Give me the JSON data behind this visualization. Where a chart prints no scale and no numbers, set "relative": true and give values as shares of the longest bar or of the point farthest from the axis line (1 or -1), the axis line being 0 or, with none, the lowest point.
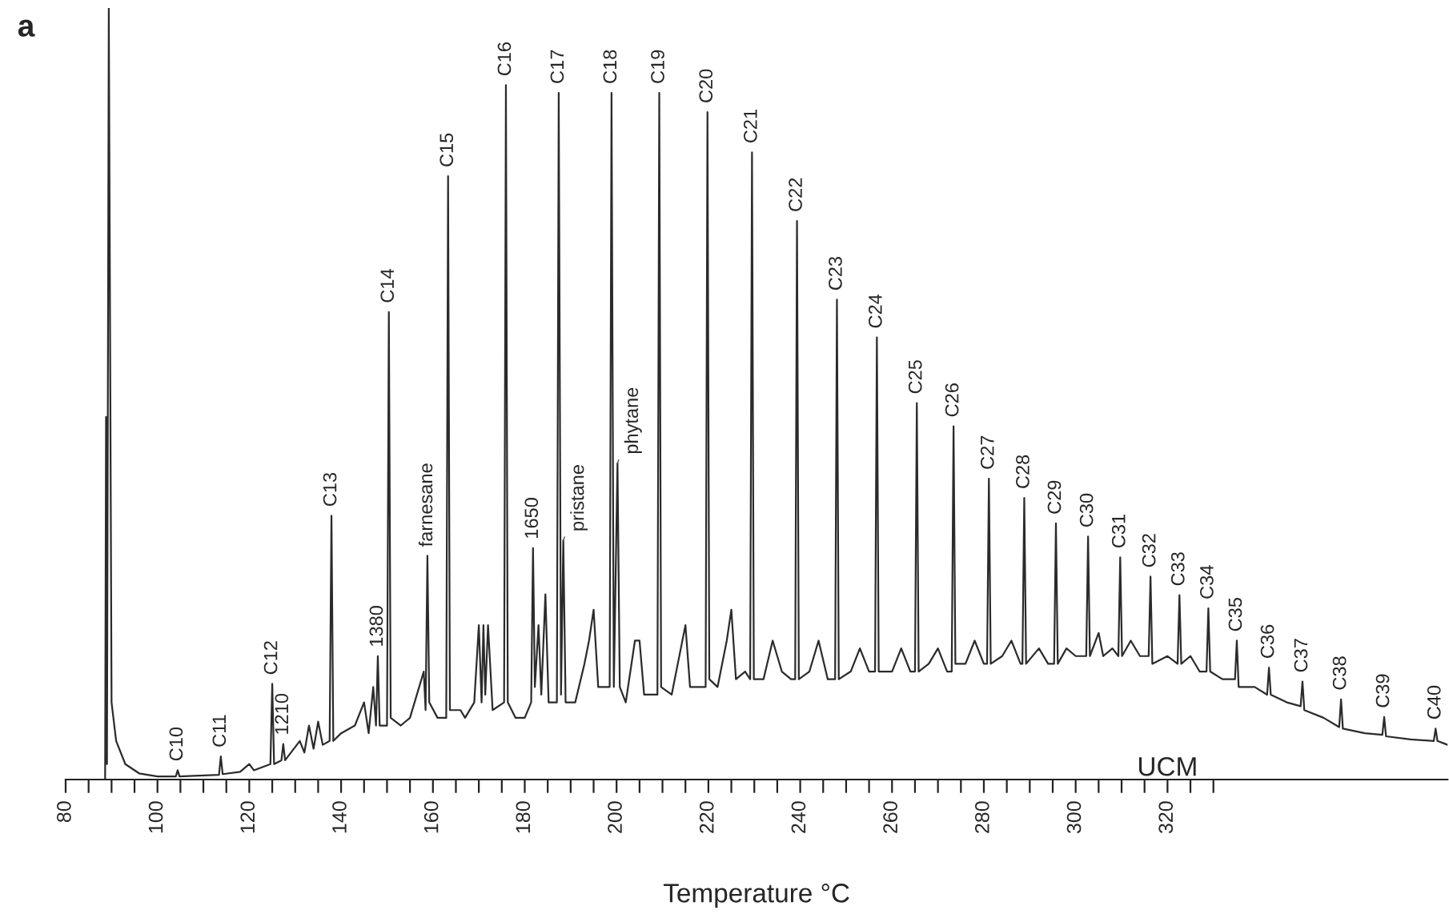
{
  "chart_data": {
    "type": "line",
    "relative": true,
    "xlabel": "Temperature °C",
    "xlim": [
      80,
      381
    ],
    "xticks": [
      80,
      {
        "value": 85,
        "label": null
      },
      {
        "value": 90,
        "label": null
      },
      {
        "value": 95,
        "label": null
      },
      100,
      {
        "value": 105,
        "label": null
      },
      {
        "value": 110,
        "label": null
      },
      {
        "value": 115,
        "label": null
      },
      120,
      {
        "value": 125,
        "label": null
      },
      {
        "value": 130,
        "label": null
      },
      {
        "value": 135,
        "label": null
      },
      140,
      {
        "value": 145,
        "label": null
      },
      {
        "value": 150,
        "label": null
      },
      {
        "value": 155,
        "label": null
      },
      160,
      {
        "value": 165,
        "label": null
      },
      {
        "value": 170,
        "label": null
      },
      {
        "value": 175,
        "label": null
      },
      180,
      {
        "value": 185,
        "label": null
      },
      {
        "value": 190,
        "label": null
      },
      {
        "value": 195,
        "label": null
      },
      200,
      {
        "value": 205,
        "label": null
      },
      {
        "value": 210,
        "label": null
      },
      {
        "value": 215,
        "label": null
      },
      220,
      {
        "value": 225,
        "label": null
      },
      {
        "value": 230,
        "label": null
      },
      {
        "value": 235,
        "label": null
      },
      240,
      {
        "value": 245,
        "label": null
      },
      {
        "value": 250,
        "label": null
      },
      {
        "value": 255,
        "label": null
      },
      260,
      {
        "value": 265,
        "label": null
      },
      {
        "value": 270,
        "label": null
      },
      {
        "value": 275,
        "label": null
      },
      280,
      {
        "value": 285,
        "label": null
      },
      {
        "value": 290,
        "label": null
      },
      {
        "value": 295,
        "label": null
      },
      300,
      {
        "value": 305,
        "label": null
      },
      {
        "value": 310,
        "label": null
      },
      {
        "value": 315,
        "label": null
      },
      320,
      {
        "value": 325,
        "label": null
      },
      {
        "value": 330,
        "label": null
      }
    ],
    "grid": false,
    "legend": false,
    "marker": "none",
    "line_style": "solid",
    "series": [
      {
        "color": "#2b2b2b",
        "x": [
          88.6,
          88.8,
          89.0,
          89.4,
          90.0,
          91,
          93,
          96,
          100,
          104.0,
          104.4,
          104.8,
          109,
          113.4,
          113.8,
          114.2,
          118,
          120,
          121,
          124.6,
          125,
          125.4,
          127,
          127.4,
          127.8,
          131,
          132,
          133,
          134,
          135,
          136,
          137.5,
          137.9,
          138.3,
          140,
          143,
          145,
          146,
          147,
          147.6,
          148,
          148.4,
          150,
          150.4,
          150.8,
          153,
          155,
          157,
          158,
          158.4,
          158.8,
          159.2,
          161,
          162.9,
          163.3,
          163.7,
          166,
          167,
          169,
          170,
          170.6,
          171,
          171.4,
          172,
          173,
          175.5,
          175.9,
          176.3,
          178,
          180,
          181.4,
          181.8,
          182.2,
          183,
          183.6,
          184.5,
          185.2,
          187,
          187.4,
          187.9,
          188.4,
          188.9,
          191,
          193,
          194,
          195,
          196,
          198.5,
          198.9,
          199.4,
          200.2,
          200.7,
          202,
          204,
          205,
          206,
          208,
          208.9,
          209.3,
          209.7,
          212,
          214,
          215,
          216,
          218,
          219.4,
          219.8,
          220.2,
          222,
          224,
          225,
          226,
          228,
          229.1,
          229.5,
          229.9,
          232,
          234,
          236,
          238,
          238.9,
          239.3,
          239.7,
          242,
          244,
          246,
          247.6,
          248,
          248.4,
          251,
          253,
          255,
          256.3,
          256.7,
          257.1,
          260,
          262,
          264,
          265,
          265.4,
          265.8,
          268,
          270,
          272,
          273,
          273.4,
          273.8,
          276,
          278,
          280,
          280.7,
          281.1,
          281.5,
          284,
          286,
          288,
          288.4,
          288.8,
          289.2,
          292,
          294,
          295.3,
          295.7,
          296.1,
          298,
          300,
          302.3,
          302.7,
          303.1,
          305,
          306,
          308,
          309.3,
          309.7,
          310.1,
          312,
          314,
          315.9,
          316.3,
          316.7,
          320,
          322.2,
          322.6,
          323,
          325,
          327,
          328.5,
          328.9,
          329.3,
          332,
          334.7,
          335.1,
          335.5,
          339,
          341.7,
          342.1,
          342.5,
          346,
          349,
          349.4,
          349.8,
          354,
          357.4,
          357.8,
          358.2,
          363,
          366.8,
          367.2,
          367.6,
          373,
          378.0,
          378.4,
          378.8,
          381
        ],
        "values": [
          0,
          0.47,
          0.02,
          1.0,
          0.1,
          0.05,
          0.02,
          0.008,
          0.004,
          0.004,
          0.012,
          0.004,
          0.005,
          0.006,
          0.03,
          0.007,
          0.01,
          0.02,
          0.012,
          0.02,
          0.124,
          0.02,
          0.025,
          0.046,
          0.025,
          0.05,
          0.035,
          0.07,
          0.04,
          0.075,
          0.045,
          0.05,
          0.342,
          0.05,
          0.06,
          0.07,
          0.1,
          0.06,
          0.12,
          0.07,
          0.16,
          0.07,
          0.07,
          0.606,
          0.08,
          0.07,
          0.08,
          0.12,
          0.14,
          0.09,
          0.29,
          0.1,
          0.08,
          0.08,
          0.782,
          0.09,
          0.09,
          0.08,
          0.1,
          0.2,
          0.1,
          0.2,
          0.11,
          0.2,
          0.09,
          0.1,
          0.9,
          0.1,
          0.08,
          0.08,
          0.1,
          0.3,
          0.12,
          0.2,
          0.11,
          0.24,
          0.1,
          0.1,
          0.89,
          0.11,
          0.31,
          0.1,
          0.1,
          0.15,
          0.18,
          0.22,
          0.12,
          0.12,
          0.89,
          0.12,
          0.41,
          0.12,
          0.1,
          0.18,
          0.18,
          0.11,
          0.11,
          0.11,
          0.89,
          0.12,
          0.11,
          0.17,
          0.2,
          0.12,
          0.12,
          0.12,
          0.865,
          0.13,
          0.12,
          0.18,
          0.22,
          0.13,
          0.14,
          0.13,
          0.813,
          0.13,
          0.13,
          0.18,
          0.14,
          0.13,
          0.13,
          0.724,
          0.13,
          0.14,
          0.18,
          0.13,
          0.13,
          0.622,
          0.13,
          0.14,
          0.17,
          0.14,
          0.14,
          0.573,
          0.14,
          0.14,
          0.17,
          0.14,
          0.14,
          0.488,
          0.14,
          0.15,
          0.17,
          0.14,
          0.14,
          0.458,
          0.15,
          0.15,
          0.18,
          0.15,
          0.15,
          0.39,
          0.15,
          0.16,
          0.18,
          0.15,
          0.15,
          0.365,
          0.15,
          0.17,
          0.15,
          0.15,
          0.332,
          0.15,
          0.17,
          0.16,
          0.16,
          0.315,
          0.16,
          0.19,
          0.16,
          0.17,
          0.16,
          0.288,
          0.16,
          0.18,
          0.16,
          0.16,
          0.263,
          0.15,
          0.16,
          0.15,
          0.239,
          0.15,
          0.16,
          0.14,
          0.14,
          0.222,
          0.14,
          0.13,
          0.13,
          0.18,
          0.12,
          0.12,
          0.11,
          0.145,
          0.11,
          0.1,
          0.095,
          0.127,
          0.09,
          0.08,
          0.068,
          0.104,
          0.066,
          0.06,
          0.058,
          0.081,
          0.056,
          0.052,
          0.05,
          0.066,
          0.05,
          0.045
        ]
      }
    ],
    "annotations": [
      "a",
      "UCM",
      {
        "text": "C10",
        "x": 104.4,
        "y": 0.012
      },
      {
        "text": "C11",
        "x": 113.8,
        "y": 0.03
      },
      {
        "text": "C12",
        "x": 125,
        "y": 0.124
      },
      {
        "text": "1210",
        "x": 127.4,
        "y": 0.046
      },
      {
        "text": "C13",
        "x": 137.9,
        "y": 0.342
      },
      {
        "text": "1380",
        "x": 148,
        "y": 0.16
      },
      {
        "text": "C14",
        "x": 150.4,
        "y": 0.606
      },
      {
        "text": "farnesane",
        "x": 158.8,
        "y": 0.29
      },
      {
        "text": "C15",
        "x": 163.3,
        "y": 0.782
      },
      {
        "text": "C16",
        "x": 175.9,
        "y": 0.9
      },
      {
        "text": "1650",
        "x": 181.8,
        "y": 0.3
      },
      {
        "text": "C17",
        "x": 187.4,
        "y": 0.89
      },
      {
        "text": "pristane",
        "x": 188.4,
        "y": 0.31
      },
      {
        "text": "C18",
        "x": 198.9,
        "y": 0.89
      },
      {
        "text": "phytane",
        "x": 200.2,
        "y": 0.41
      },
      {
        "text": "C19",
        "x": 209.3,
        "y": 0.89
      },
      {
        "text": "C20",
        "x": 219.8,
        "y": 0.865
      },
      {
        "text": "C21",
        "x": 229.5,
        "y": 0.813
      },
      {
        "text": "C22",
        "x": 239.3,
        "y": 0.724
      },
      {
        "text": "C23",
        "x": 248,
        "y": 0.622
      },
      {
        "text": "C24",
        "x": 256.7,
        "y": 0.573
      },
      {
        "text": "C25",
        "x": 265.4,
        "y": 0.488
      },
      {
        "text": "C26",
        "x": 273.4,
        "y": 0.458
      },
      {
        "text": "C27",
        "x": 281.1,
        "y": 0.39
      },
      {
        "text": "C28",
        "x": 288.8,
        "y": 0.365
      },
      {
        "text": "C29",
        "x": 295.7,
        "y": 0.332
      },
      {
        "text": "C30",
        "x": 302.7,
        "y": 0.315
      },
      {
        "text": "C31",
        "x": 309.7,
        "y": 0.288
      },
      {
        "text": "C32",
        "x": 316.3,
        "y": 0.263
      },
      {
        "text": "C33",
        "x": 322.6,
        "y": 0.239
      },
      {
        "text": "C34",
        "x": 328.9,
        "y": 0.222
      },
      {
        "text": "C35",
        "x": 335.1,
        "y": 0.18
      },
      {
        "text": "C36",
        "x": 342.1,
        "y": 0.145
      },
      {
        "text": "C37",
        "x": 349.4,
        "y": 0.127
      },
      {
        "text": "C38",
        "x": 357.8,
        "y": 0.104
      },
      {
        "text": "C39",
        "x": 367.2,
        "y": 0.081
      },
      {
        "text": "C40",
        "x": 378.4,
        "y": 0.066
      }
    ]
  }
}
